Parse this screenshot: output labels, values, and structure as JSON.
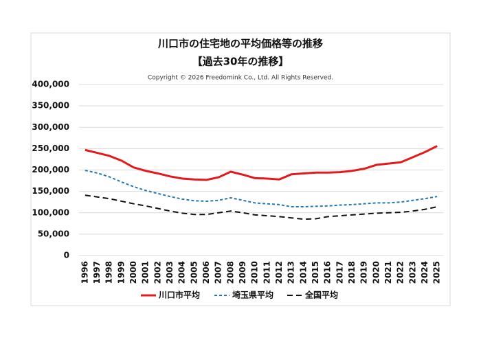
{
  "chart_data": {
    "type": "line",
    "title": "川口市の住宅地の平均価格等の推移",
    "subtitle": "【過去30年の推移】",
    "annotation": "Copyright © 2026 Freedomink Co., Ltd. All Rights Reserved.",
    "categories": [
      "1996",
      "1997",
      "1998",
      "1999",
      "2000",
      "2001",
      "2002",
      "2003",
      "2004",
      "2005",
      "2006",
      "2007",
      "2008",
      "2009",
      "2010",
      "2011",
      "2012",
      "2013",
      "2014",
      "2015",
      "2016",
      "2017",
      "2018",
      "2019",
      "2020",
      "2021",
      "2022",
      "2023",
      "2024",
      "2025"
    ],
    "series": [
      {
        "name": "川口市平均",
        "color": "#e31a1c",
        "dash": "solid",
        "values": [
          247000,
          240000,
          233000,
          222000,
          206000,
          198000,
          192000,
          185000,
          180000,
          178000,
          177000,
          183000,
          196000,
          189000,
          181000,
          180000,
          178000,
          190000,
          192000,
          194000,
          194000,
          195000,
          198000,
          203000,
          212000,
          215000,
          218000,
          230000,
          242000,
          256000
        ]
      },
      {
        "name": "埼玉県平均",
        "color": "#1f77b4",
        "dash": "short",
        "values": [
          199000,
          193000,
          184000,
          172000,
          161000,
          152000,
          145000,
          138000,
          132000,
          128000,
          127000,
          129000,
          135000,
          129000,
          123000,
          121000,
          119000,
          114000,
          114000,
          115000,
          116000,
          118000,
          119000,
          121000,
          123000,
          123000,
          125000,
          129000,
          133000,
          138000
        ]
      },
      {
        "name": "全国平均",
        "color": "#111111",
        "dash": "long",
        "values": [
          141000,
          137000,
          133000,
          127000,
          121000,
          116000,
          110000,
          104000,
          99000,
          96000,
          96000,
          100000,
          104000,
          100000,
          95000,
          93000,
          91000,
          88000,
          85000,
          86000,
          91000,
          93000,
          95000,
          97000,
          99000,
          100000,
          101000,
          104000,
          108000,
          114000
        ]
      }
    ],
    "ylim": [
      0,
      400000
    ],
    "yticks": [
      0,
      {
        "value": 50000,
        "label": "50,000"
      },
      {
        "value": 100000,
        "label": "100,000"
      },
      {
        "value": 150000,
        "label": "150,000"
      },
      {
        "value": 200000,
        "label": "200,000"
      },
      {
        "value": 250000,
        "label": "250,000"
      },
      {
        "value": 300000,
        "label": "300,000"
      },
      {
        "value": 350000,
        "label": "350,000"
      },
      {
        "value": 400000,
        "label": "400,000"
      }
    ],
    "grid": true,
    "legend": "bottom"
  }
}
